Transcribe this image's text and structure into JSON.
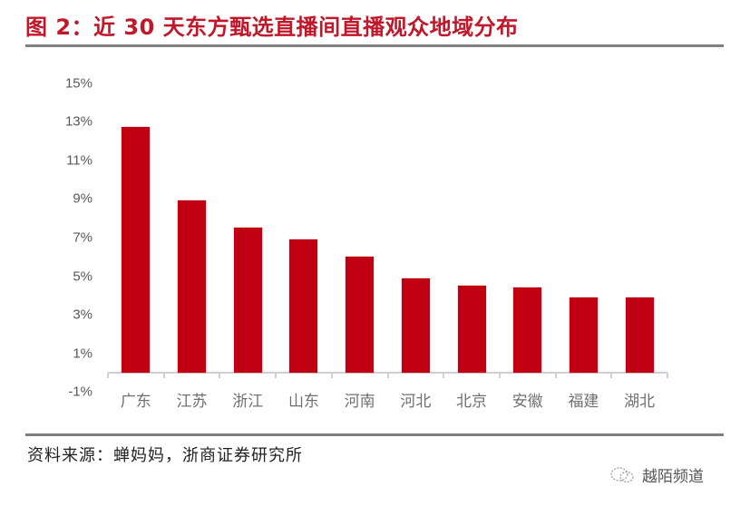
{
  "header": {
    "title": "图 2：近 30 天东方甄选直播间直播观众地域分布"
  },
  "footer": {
    "source": "资料来源：蝉妈妈，浙商证券研究所",
    "watermark": "越陌频道",
    "watermark_icon": "wechat-icon"
  },
  "colors": {
    "title": "#c0182a",
    "bar": "#c00012",
    "axis_text": "#595959",
    "rule": "#7f7f7f"
  },
  "y_ticks": [
    "15%",
    "13%",
    "11%",
    "9%",
    "7%",
    "5%",
    "3%",
    "1%",
    "-1%"
  ],
  "chart_data": {
    "type": "bar",
    "title": "近 30 天东方甄选直播间直播观众地域分布",
    "xlabel": "",
    "ylabel": "",
    "ylim": [
      -1,
      15
    ],
    "y_tick_labels": [
      "-1%",
      "1%",
      "3%",
      "5%",
      "7%",
      "9%",
      "11%",
      "13%",
      "15%"
    ],
    "grid": false,
    "legend": null,
    "categories": [
      "广东",
      "江苏",
      "浙江",
      "山东",
      "河南",
      "河北",
      "北京",
      "安徽",
      "福建",
      "湖北"
    ],
    "values": [
      12.7,
      8.9,
      7.5,
      6.9,
      6.0,
      4.9,
      4.5,
      4.4,
      3.9,
      3.9
    ],
    "unit": "%"
  }
}
